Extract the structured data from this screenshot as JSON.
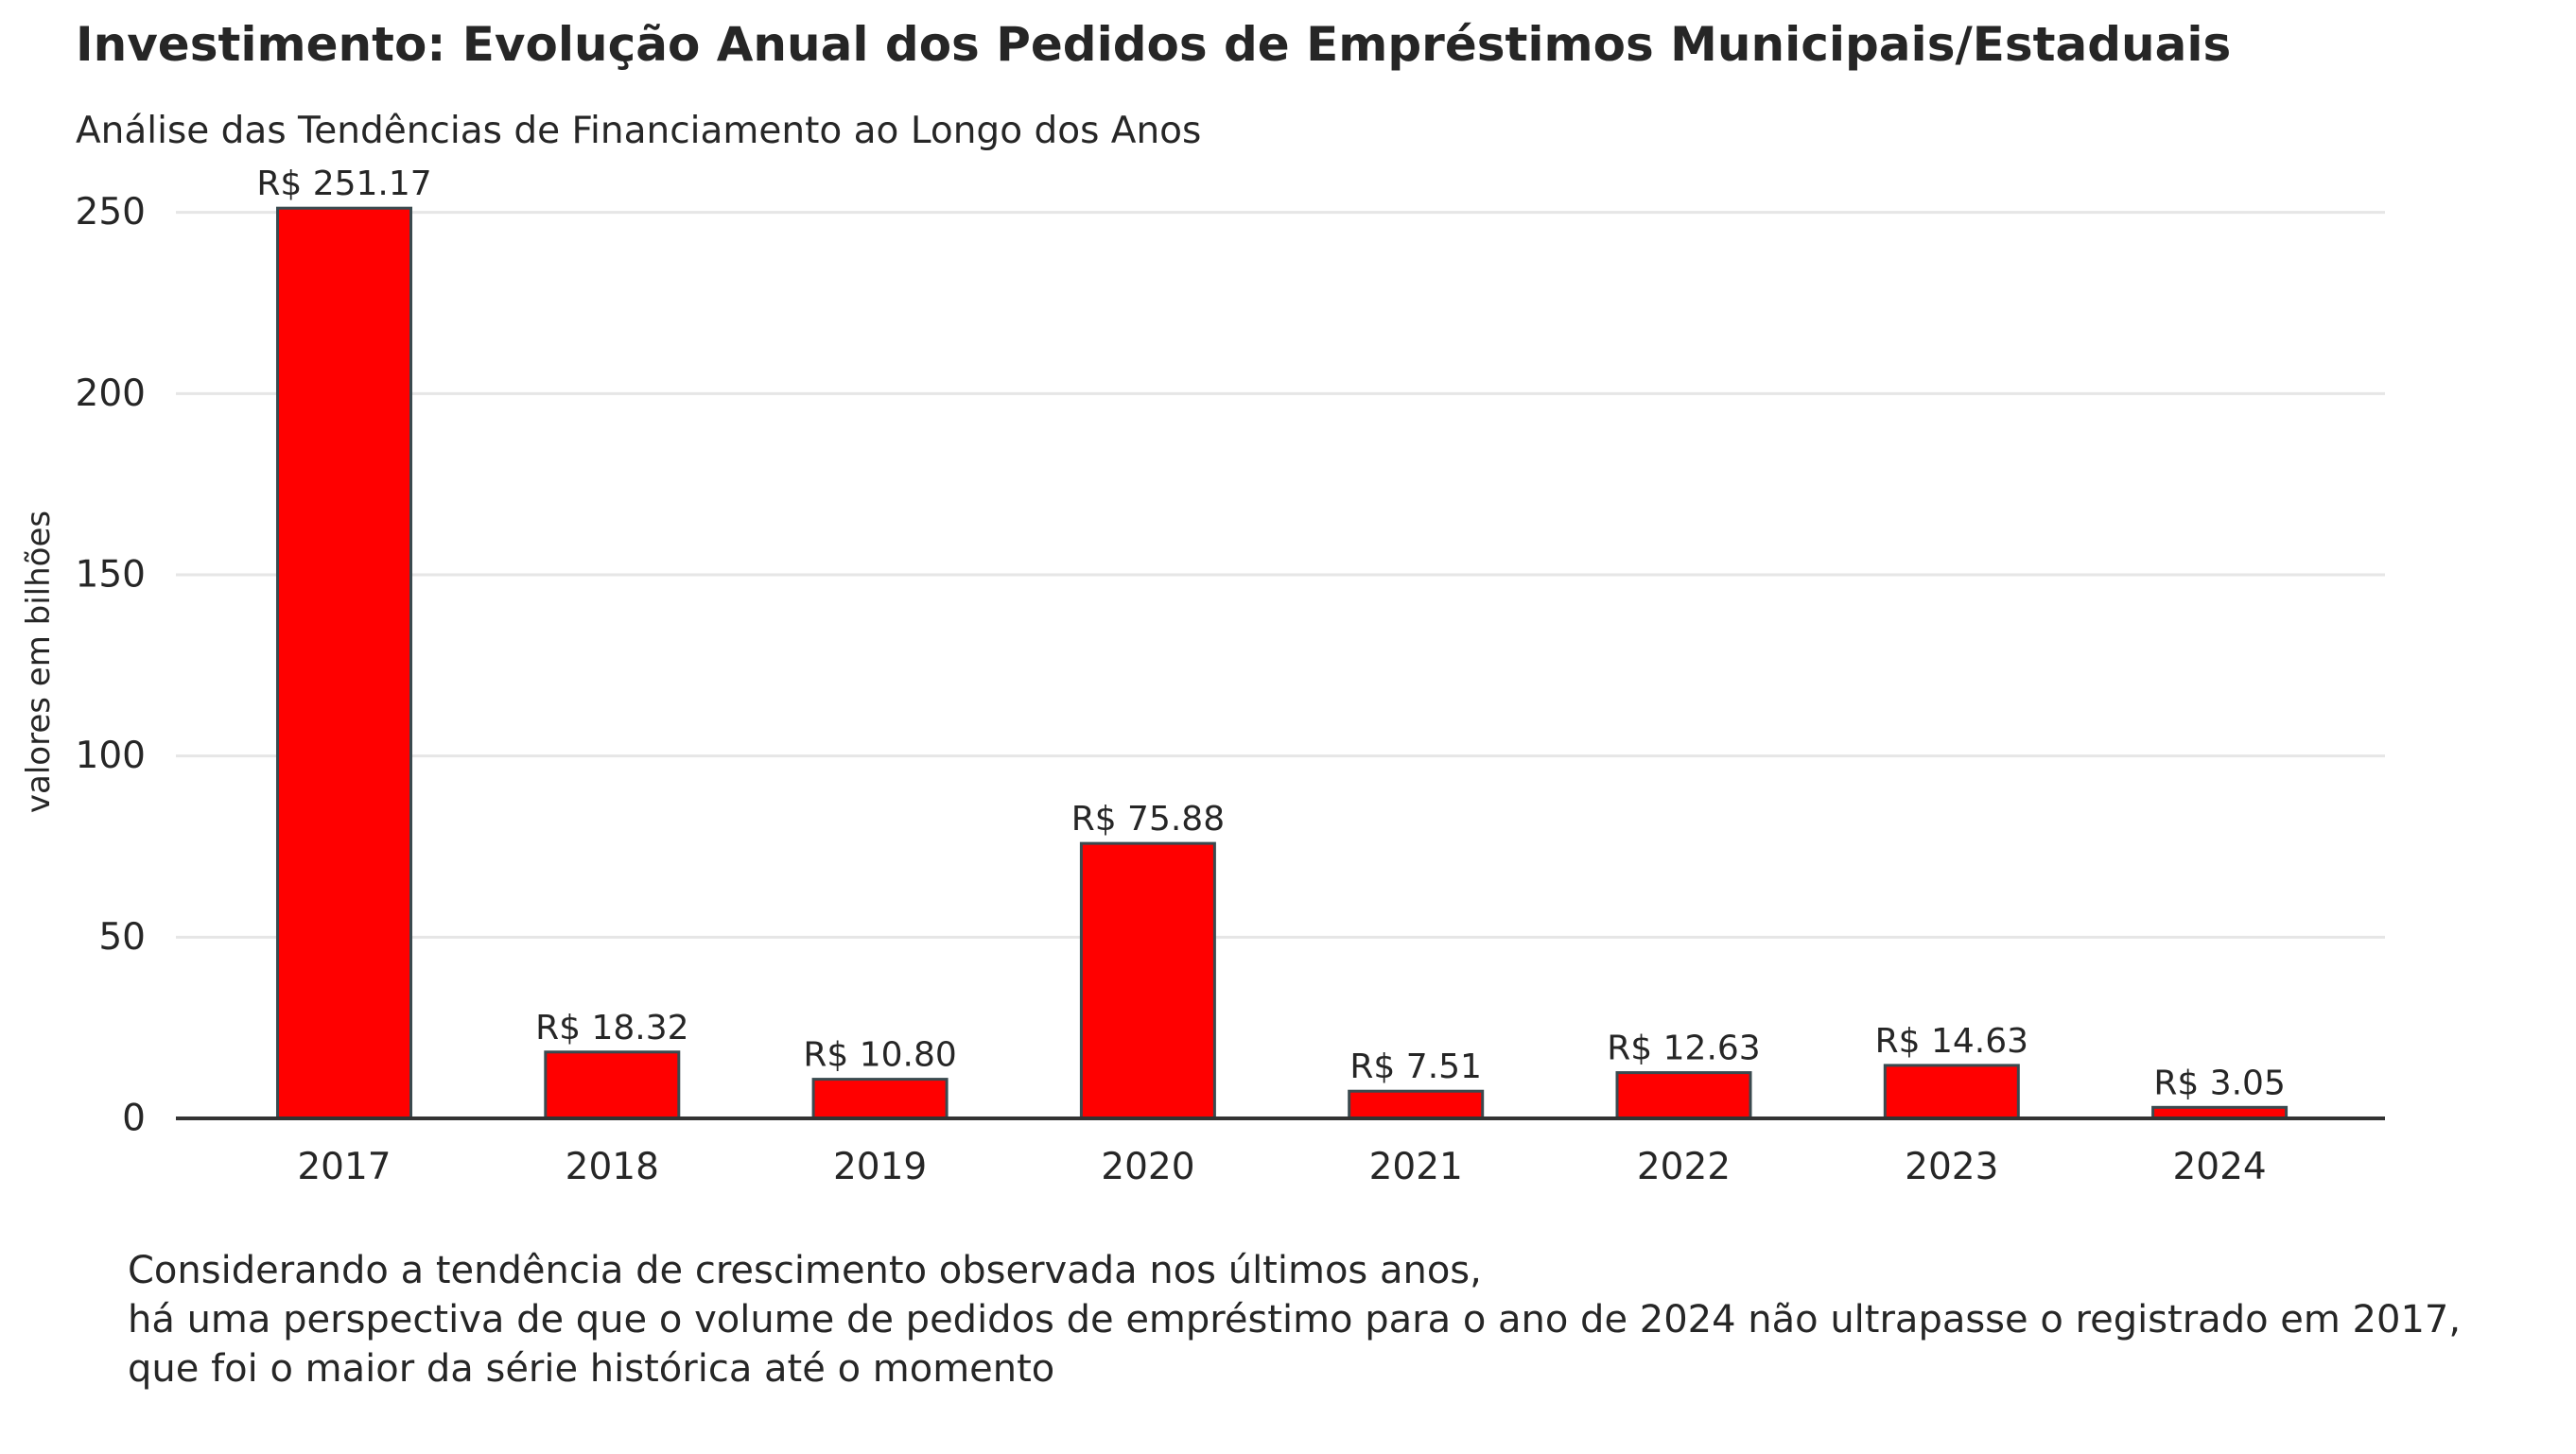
{
  "chart_data": {
    "type": "bar",
    "title": "Investimento: Evolução Anual dos Pedidos de Empréstimos Municipais/Estaduais",
    "subtitle": "Análise das Tendências de Financiamento ao Longo dos Anos",
    "xlabel": "",
    "ylabel": "valores em bilhões",
    "categories": [
      "2017",
      "2018",
      "2019",
      "2020",
      "2021",
      "2022",
      "2023",
      "2024"
    ],
    "values": [
      251.17,
      18.32,
      10.8,
      75.88,
      7.51,
      12.63,
      14.63,
      3.05
    ],
    "data_labels": [
      "R$ 251.17",
      "R$ 18.32",
      "R$ 10.80",
      "R$ 75.88",
      "R$ 7.51",
      "R$ 12.63",
      "R$ 14.63",
      "R$ 3.05"
    ],
    "yticks": [
      0,
      50,
      100,
      150,
      200,
      250
    ],
    "ylim": [
      0,
      270
    ],
    "grid": "horizontal",
    "bar_color": "#ff0000",
    "bar_edge_color": "#3a4a4f",
    "grid_color": "#e6e6e6",
    "axis_color": "#333333"
  },
  "caption": {
    "lines": [
      "Considerando a tendência de crescimento observada nos últimos anos,",
      "há uma perspectiva de que o volume de pedidos de empréstimo para o ano de 2024 não ultrapasse o registrado em 2017,",
      "que foi o maior da série histórica até o momento"
    ]
  }
}
